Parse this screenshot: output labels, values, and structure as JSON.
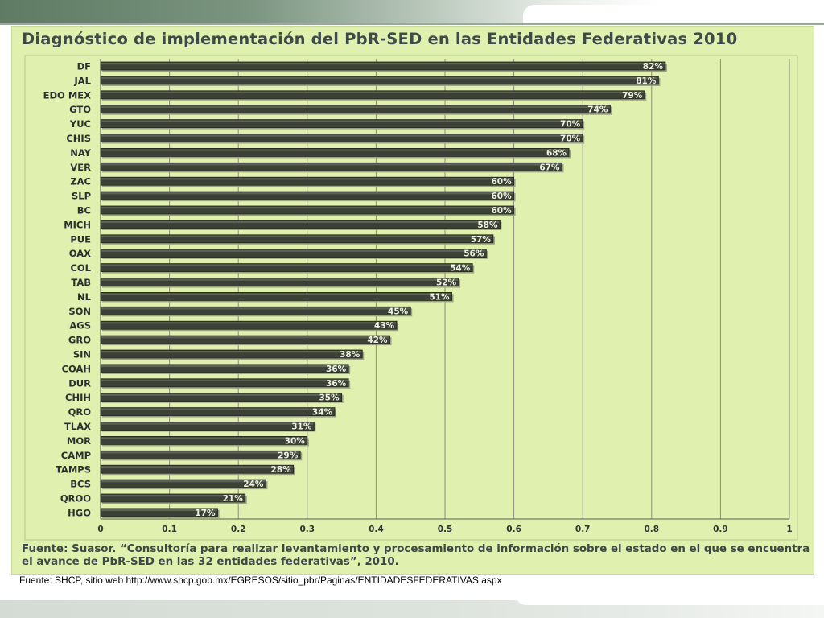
{
  "slide": {
    "source_caption": "Fuente: SHCP, sitio web http://www.shcp.gob.mx/EGRESOS/sitio_pbr/Paginas/ENTIDADESFEDERATIVAS.aspx"
  },
  "colors": {
    "background": "#e0f0ae",
    "bar": "#3c4137",
    "grid": "#8c8c80",
    "text": "#3f4b4b"
  },
  "chart_data": {
    "type": "bar",
    "orientation": "horizontal",
    "title": "Diagnóstico de implementación del PbR-SED en las Entidades Federativas 2010",
    "categories": [
      "DF",
      "JAL",
      "EDO MEX",
      "GTO",
      "YUC",
      "CHIS",
      "NAY",
      "VER",
      "ZAC",
      "SLP",
      "BC",
      "MICH",
      "PUE",
      "OAX",
      "COL",
      "TAB",
      "NL",
      "SON",
      "AGS",
      "GRO",
      "SIN",
      "COAH",
      "DUR",
      "CHIH",
      "QRO",
      "TLAX",
      "MOR",
      "CAMP",
      "TAMPS",
      "BCS",
      "QROO",
      "HGO"
    ],
    "values": [
      0.82,
      0.81,
      0.79,
      0.74,
      0.7,
      0.7,
      0.68,
      0.67,
      0.6,
      0.6,
      0.6,
      0.58,
      0.57,
      0.56,
      0.54,
      0.52,
      0.51,
      0.45,
      0.43,
      0.42,
      0.38,
      0.36,
      0.36,
      0.35,
      0.34,
      0.31,
      0.3,
      0.29,
      0.28,
      0.24,
      0.21,
      0.17
    ],
    "data_labels": [
      "82%",
      "81%",
      "79%",
      "74%",
      "70%",
      "70%",
      "68%",
      "67%",
      "60%",
      "60%",
      "60%",
      "58%",
      "57%",
      "56%",
      "54%",
      "52%",
      "51%",
      "45%",
      "43%",
      "42%",
      "38%",
      "36%",
      "36%",
      "35%",
      "34%",
      "31%",
      "30%",
      "29%",
      "28%",
      "24%",
      "21%",
      "17%"
    ],
    "xlim": [
      0,
      1
    ],
    "xticks": [
      "0",
      "0.1",
      "0.2",
      "0.3",
      "0.4",
      "0.5",
      "0.6",
      "0.7",
      "0.8",
      "0.9",
      "1"
    ],
    "xlabel": "",
    "ylabel": "",
    "grid": "vertical",
    "legend": "none",
    "footnote": "Fuente: Suasor. “Consultoría para realizar levantamiento y procesamiento de información sobre el estado en el que se encuentra el avance de PbR-SED en las 32 entidades federativas”, 2010."
  }
}
